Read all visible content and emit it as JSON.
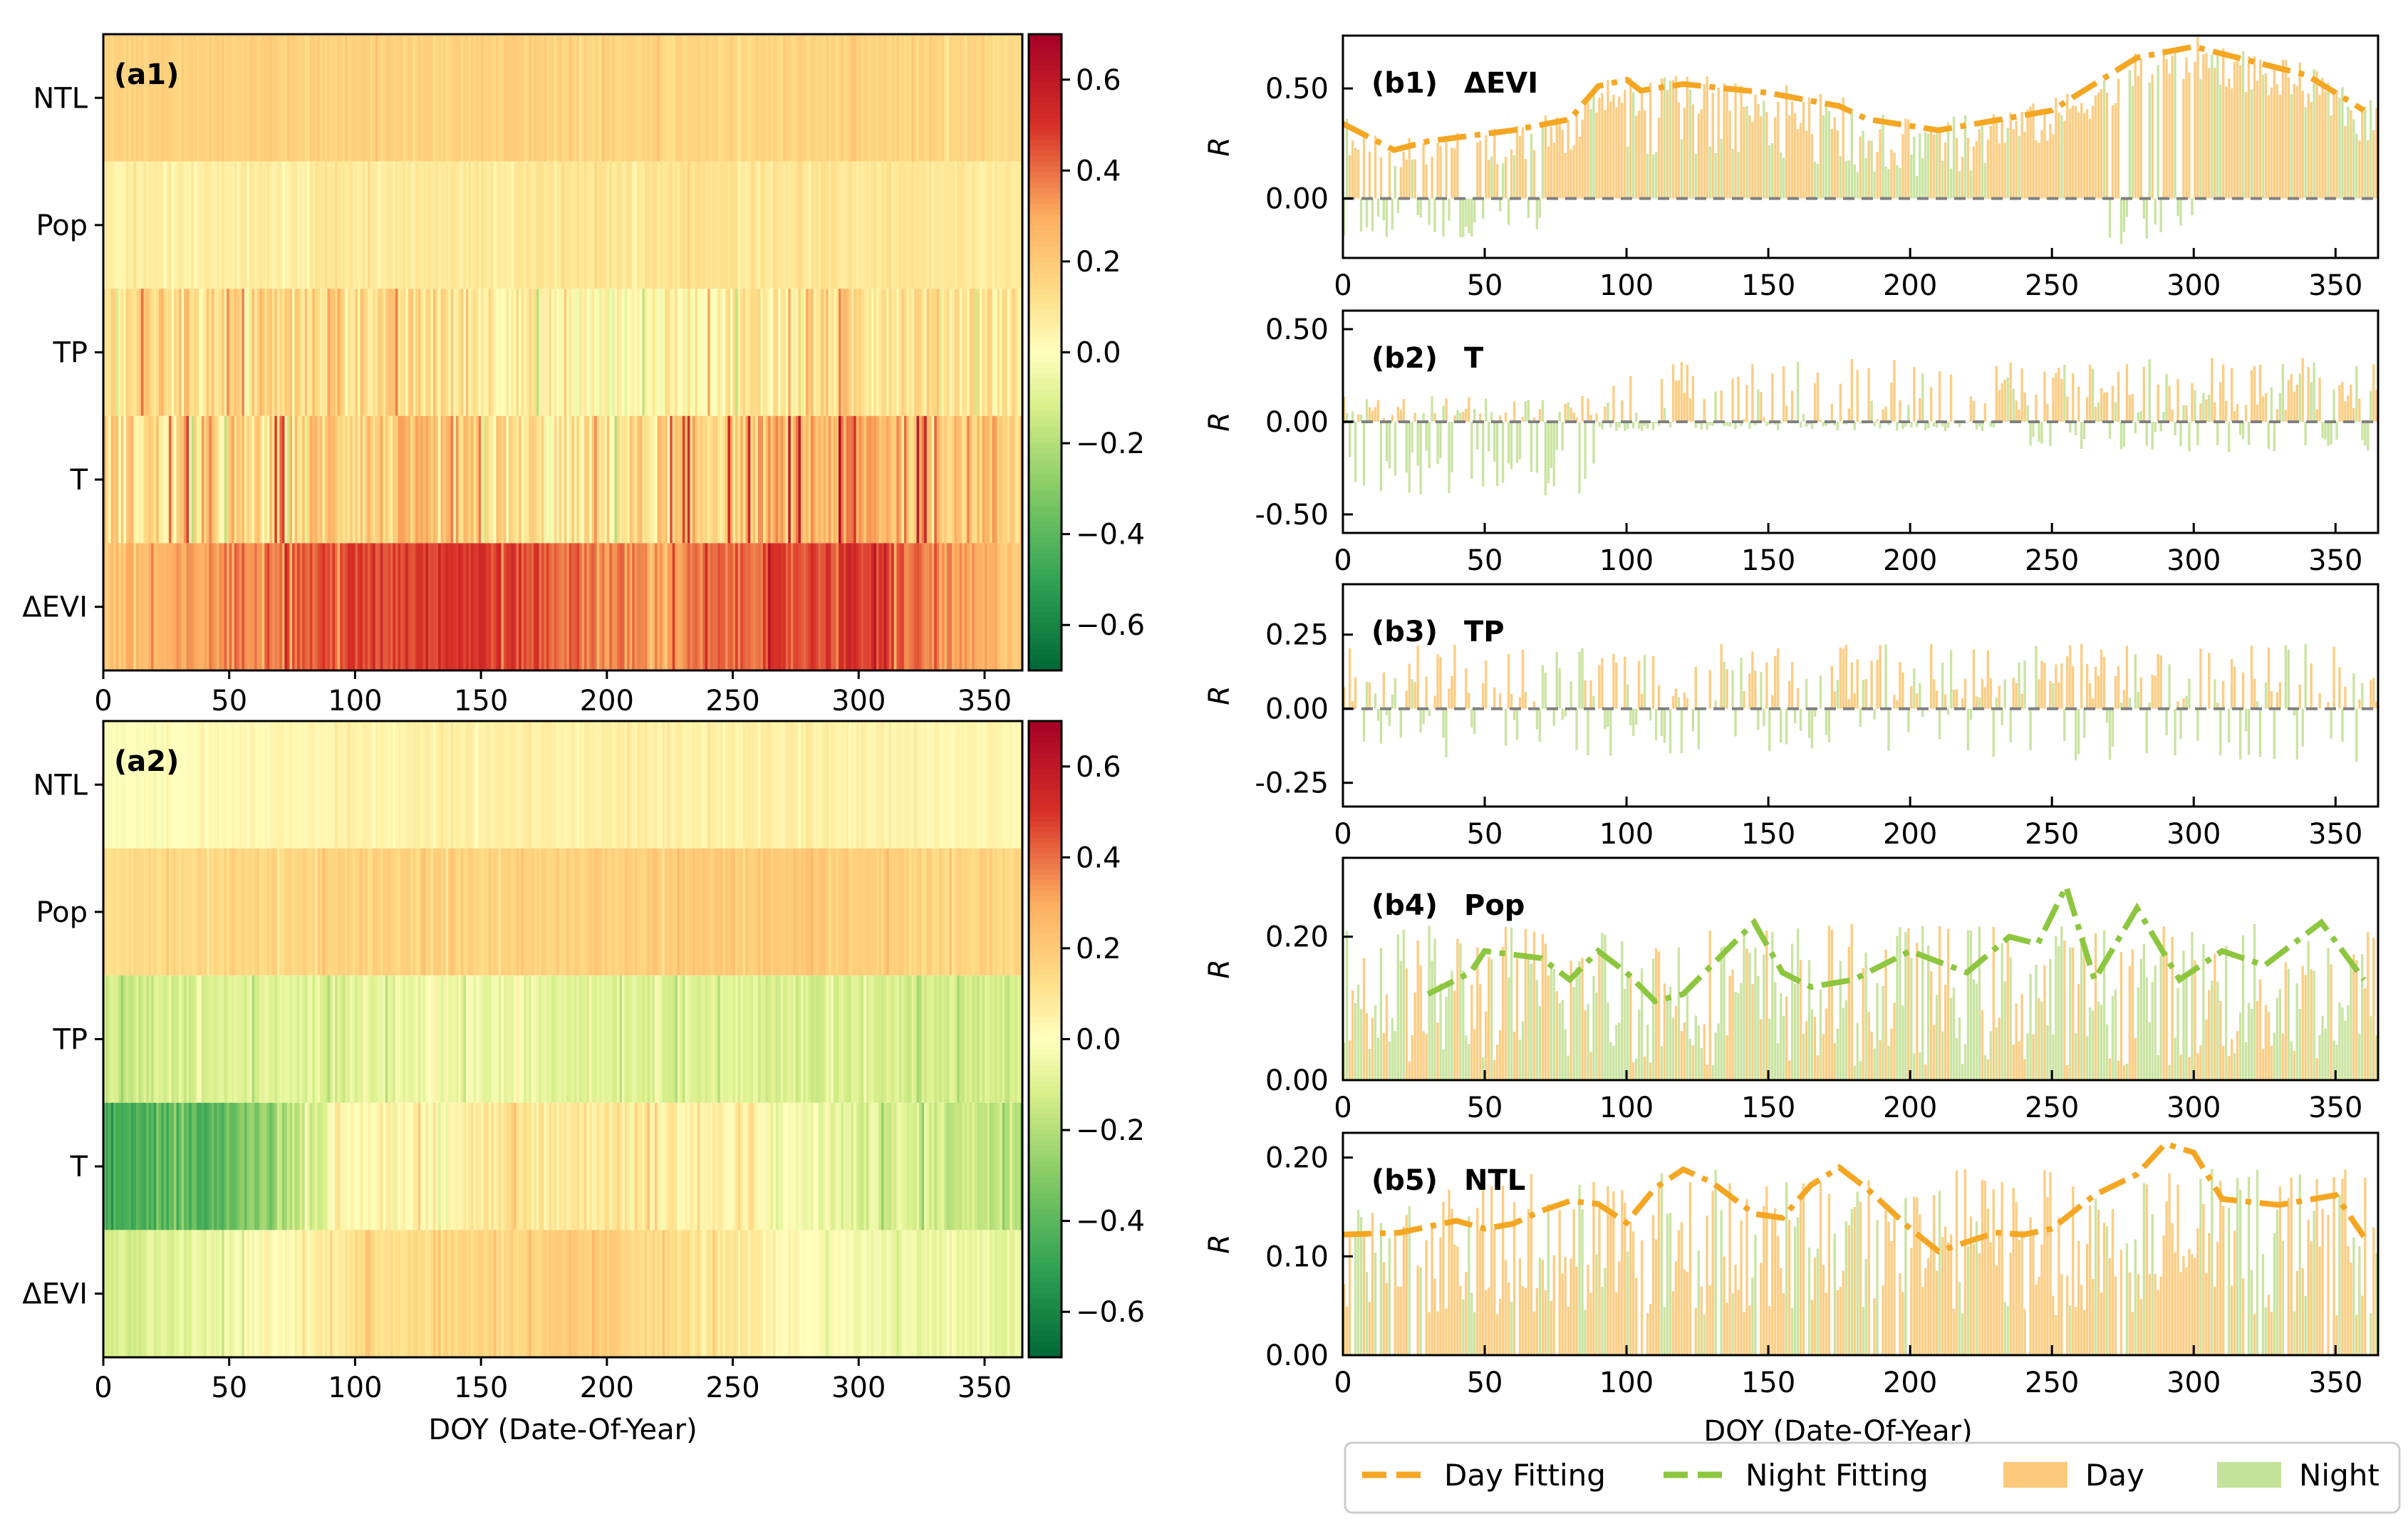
{
  "chart_data": [
    {
      "type": "heatmap",
      "panel": "(a1)",
      "rows": [
        "NTL",
        "Pop",
        "TP",
        "T",
        "ΔEVI"
      ],
      "x_ticks": [
        0,
        50,
        100,
        150,
        200,
        250,
        300,
        350
      ],
      "xlim": [
        0,
        365
      ],
      "colorbar": {
        "ticks": [
          0.6,
          0.4,
          0.2,
          0.0,
          -0.2,
          -0.4,
          -0.6
        ],
        "tick_labels": [
          "0.6",
          "0.4",
          "0.2",
          "0.0",
          "−0.2",
          "−0.4",
          "−0.6"
        ],
        "range": [
          -0.7,
          0.7
        ]
      },
      "row_profiles": {
        "NTL": {
          "knots_x": [
            0,
            60,
            120,
            180,
            240,
            300,
            365
          ],
          "knots_v": [
            0.16,
            0.18,
            0.17,
            0.17,
            0.15,
            0.16,
            0.14
          ],
          "noise": 0.04
        },
        "Pop": {
          "knots_x": [
            0,
            60,
            120,
            180,
            240,
            300,
            365
          ],
          "knots_v": [
            0.06,
            0.07,
            0.08,
            0.09,
            0.11,
            0.09,
            0.07
          ],
          "noise": 0.04
        },
        "TP": {
          "knots_x": [
            0,
            30,
            60,
            100,
            150,
            200,
            250,
            300,
            365
          ],
          "knots_v": [
            0.12,
            0.18,
            0.14,
            0.16,
            0.1,
            0.0,
            0.08,
            0.14,
            0.1
          ],
          "noise": 0.14
        },
        "T": {
          "knots_x": [
            0,
            60,
            90,
            130,
            180,
            250,
            300,
            365
          ],
          "knots_v": [
            0.14,
            0.12,
            0.2,
            0.18,
            0.06,
            0.2,
            0.3,
            0.2
          ],
          "noise": 0.2
        },
        "ΔEVI": {
          "knots_x": [
            0,
            30,
            60,
            100,
            140,
            175,
            220,
            260,
            300,
            340,
            365
          ],
          "knots_v": [
            0.22,
            0.28,
            0.4,
            0.46,
            0.52,
            0.44,
            0.32,
            0.44,
            0.5,
            0.3,
            0.22
          ],
          "noise": 0.1
        }
      }
    },
    {
      "type": "heatmap",
      "panel": "(a2)",
      "rows": [
        "NTL",
        "Pop",
        "TP",
        "T",
        "ΔEVI"
      ],
      "x_ticks": [
        0,
        50,
        100,
        150,
        200,
        250,
        300,
        350
      ],
      "xlim": [
        0,
        365
      ],
      "xlabel": "DOY (Date-Of-Year)",
      "colorbar": {
        "ticks": [
          0.6,
          0.4,
          0.2,
          0.0,
          -0.2,
          -0.4,
          -0.6
        ],
        "tick_labels": [
          "0.6",
          "0.4",
          "0.2",
          "0.0",
          "−0.2",
          "−0.4",
          "−0.6"
        ],
        "range": [
          -0.7,
          0.7
        ]
      },
      "row_profiles": {
        "NTL": {
          "knots_x": [
            0,
            40,
            100,
            200,
            300,
            365
          ],
          "knots_v": [
            -0.02,
            0.02,
            0.05,
            0.06,
            0.05,
            0.03
          ],
          "noise": 0.03
        },
        "Pop": {
          "knots_x": [
            0,
            100,
            200,
            280,
            300,
            365
          ],
          "knots_v": [
            0.14,
            0.16,
            0.18,
            0.2,
            0.18,
            0.15
          ],
          "noise": 0.05
        },
        "TP": {
          "knots_x": [
            0,
            60,
            150,
            250,
            365
          ],
          "knots_v": [
            -0.14,
            -0.1,
            -0.06,
            -0.1,
            -0.14
          ],
          "noise": 0.07
        },
        "T": {
          "knots_x": [
            0,
            20,
            50,
            70,
            100,
            150,
            200,
            250,
            300,
            365
          ],
          "knots_v": [
            -0.46,
            -0.42,
            -0.38,
            -0.2,
            0.02,
            0.08,
            0.1,
            0.04,
            -0.1,
            -0.16
          ],
          "noise": 0.09
        },
        "ΔEVI": {
          "knots_x": [
            0,
            50,
            100,
            150,
            200,
            250,
            300,
            365
          ],
          "knots_v": [
            -0.12,
            -0.06,
            0.12,
            0.16,
            0.18,
            0.08,
            -0.04,
            -0.08
          ],
          "noise": 0.06
        }
      }
    },
    {
      "type": "bar",
      "panel": "(b1)",
      "variable": "ΔEVI",
      "ylabel": "R",
      "ylim": [
        -0.27,
        0.74
      ],
      "y_ticks": [
        0.0,
        0.5
      ],
      "y_tick_labels": [
        "0.00",
        "0.50"
      ],
      "x_ticks": [
        0,
        50,
        100,
        150,
        200,
        250,
        300,
        350
      ],
      "xlim": [
        0,
        365
      ],
      "day_fit": {
        "x": [
          0,
          18,
          30,
          60,
          80,
          90,
          100,
          105,
          120,
          150,
          175,
          185,
          210,
          250,
          280,
          300,
          340,
          360
        ],
        "y": [
          0.34,
          0.22,
          0.26,
          0.31,
          0.36,
          0.51,
          0.54,
          0.49,
          0.52,
          0.48,
          0.42,
          0.36,
          0.31,
          0.4,
          0.64,
          0.69,
          0.56,
          0.4
        ]
      },
      "night_bars": {
        "segments": [
          [
            0,
            70,
            -0.18,
            0.0
          ],
          [
            270,
            300,
            -0.22,
            0.02
          ]
        ]
      },
      "day_bars_noise": 0.1
    },
    {
      "type": "bar",
      "panel": "(b2)",
      "variable": "T",
      "ylabel": "R",
      "ylim": [
        -0.6,
        0.6
      ],
      "y_ticks": [
        -0.5,
        0.0,
        0.5
      ],
      "y_tick_labels": [
        "-0.50",
        "0.00",
        "0.50"
      ],
      "x_ticks": [
        0,
        50,
        100,
        150,
        200,
        250,
        300,
        350
      ],
      "xlim": [
        0,
        365
      ]
    },
    {
      "type": "bar",
      "panel": "(b3)",
      "variable": "TP",
      "ylabel": "R",
      "ylim": [
        -0.33,
        0.42
      ],
      "y_ticks": [
        -0.25,
        0.0,
        0.25
      ],
      "y_tick_labels": [
        "-0.25",
        "0.00",
        "0.25"
      ],
      "x_ticks": [
        0,
        50,
        100,
        150,
        200,
        250,
        300,
        350
      ],
      "xlim": [
        0,
        365
      ]
    },
    {
      "type": "bar",
      "panel": "(b4)",
      "variable": "Pop",
      "ylabel": "R",
      "ylim": [
        0.0,
        0.31
      ],
      "y_ticks": [
        0.0,
        0.2
      ],
      "y_tick_labels": [
        "0.00",
        "0.20"
      ],
      "x_ticks": [
        0,
        50,
        100,
        150,
        200,
        250,
        300,
        350
      ],
      "xlim": [
        0,
        365
      ],
      "night_fit": {
        "x": [
          30,
          45,
          50,
          70,
          80,
          90,
          100,
          110,
          120,
          130,
          145,
          155,
          165,
          180,
          200,
          220,
          235,
          245,
          255,
          265,
          280,
          295,
          310,
          325,
          345,
          360
        ],
        "y": [
          0.12,
          0.15,
          0.18,
          0.17,
          0.14,
          0.18,
          0.15,
          0.11,
          0.12,
          0.16,
          0.22,
          0.15,
          0.13,
          0.14,
          0.18,
          0.15,
          0.2,
          0.19,
          0.27,
          0.14,
          0.24,
          0.14,
          0.18,
          0.16,
          0.22,
          0.14
        ]
      }
    },
    {
      "type": "bar",
      "panel": "(b5)",
      "variable": "NTL",
      "ylabel": "R",
      "ylim": [
        0.0,
        0.225
      ],
      "y_ticks": [
        0.0,
        0.1,
        0.2
      ],
      "y_tick_labels": [
        "0.00",
        "0.10",
        "0.20"
      ],
      "x_ticks": [
        0,
        50,
        100,
        150,
        200,
        250,
        300,
        350
      ],
      "xlim": [
        0,
        365
      ],
      "xlabel": "DOY (Date-Of-Year)",
      "day_fit": {
        "x": [
          0,
          20,
          40,
          50,
          60,
          70,
          80,
          90,
          100,
          110,
          120,
          130,
          145,
          155,
          165,
          175,
          185,
          200,
          210,
          230,
          240,
          250,
          265,
          280,
          290,
          300,
          310,
          330,
          350,
          360
        ],
        "y": [
          0.122,
          0.124,
          0.136,
          0.128,
          0.133,
          0.146,
          0.156,
          0.153,
          0.134,
          0.169,
          0.188,
          0.175,
          0.143,
          0.139,
          0.172,
          0.19,
          0.168,
          0.128,
          0.105,
          0.124,
          0.122,
          0.128,
          0.162,
          0.183,
          0.214,
          0.205,
          0.158,
          0.152,
          0.162,
          0.12
        ]
      }
    }
  ],
  "legend": {
    "items": [
      {
        "label": "Day Fitting",
        "kind": "dash",
        "color": "#f5a623"
      },
      {
        "label": "Night Fitting",
        "kind": "dash",
        "color": "#8dc63f"
      },
      {
        "label": "Day",
        "kind": "patch",
        "color": "#fbc97a"
      },
      {
        "label": "Night",
        "kind": "patch",
        "color": "#c5e29a"
      }
    ]
  },
  "colors": {
    "day": "#fbc97a",
    "day_fit": "#f5a623",
    "night": "#c5e29a",
    "night_fit": "#8dc63f",
    "zero_line": "#808080"
  }
}
